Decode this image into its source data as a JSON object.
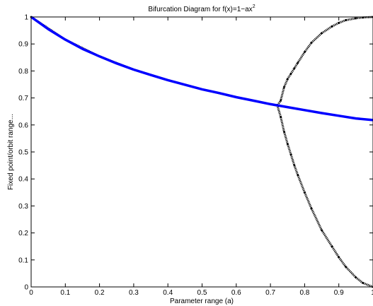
{
  "chart_data": {
    "type": "scatter",
    "title": "Bifurcation Diagram for f(x)=1−ax",
    "title_superscript": "2",
    "xlabel": "Parameter range (a)",
    "ylabel": "Fixed point/orbit range...",
    "xlim": [
      0,
      1
    ],
    "ylim": [
      0,
      1
    ],
    "x_ticks": [
      "0",
      "0.1",
      "0.2",
      "0.3",
      "0.4",
      "0.5",
      "0.6",
      "0.7",
      "0.8",
      "0.9",
      "1"
    ],
    "y_ticks": [
      "0",
      "0.1",
      "0.2",
      "0.3",
      "0.4",
      "0.5",
      "0.6",
      "0.7",
      "0.8",
      "0.9",
      "1"
    ],
    "grid": false,
    "series": [
      {
        "style": "line",
        "color": "#0000ff",
        "x": [
          0,
          0.05,
          0.1,
          0.15,
          0.2,
          0.25,
          0.3,
          0.35,
          0.4,
          0.45,
          0.5,
          0.55,
          0.6,
          0.65,
          0.7,
          0.75,
          0.8,
          0.85,
          0.9,
          0.95,
          1.0
        ],
        "y": [
          1.0,
          0.955,
          0.916,
          0.882,
          0.854,
          0.828,
          0.805,
          0.785,
          0.766,
          0.749,
          0.732,
          0.718,
          0.703,
          0.69,
          0.677,
          0.666,
          0.655,
          0.644,
          0.634,
          0.624,
          0.618
        ]
      },
      {
        "style": "dots",
        "color": "#000000",
        "x": [
          0,
          0.1,
          0.2,
          0.3,
          0.4,
          0.5,
          0.6,
          0.65,
          0.7,
          0.72,
          0.73,
          0.74,
          0.75,
          0.76,
          0.77,
          0.78,
          0.8,
          0.82,
          0.85,
          0.88,
          0.9,
          0.92,
          0.95,
          0.97,
          1.0
        ],
        "y": [
          1.0,
          0.916,
          0.854,
          0.805,
          0.766,
          0.732,
          0.703,
          0.69,
          0.677,
          0.672,
          0.69,
          0.74,
          0.77,
          0.79,
          0.81,
          0.83,
          0.87,
          0.905,
          0.94,
          0.965,
          0.978,
          0.988,
          0.995,
          0.998,
          1.0
        ]
      },
      {
        "style": "dots",
        "color": "#000000",
        "x": [
          0.72,
          0.73,
          0.74,
          0.75,
          0.76,
          0.77,
          0.78,
          0.8,
          0.82,
          0.85,
          0.88,
          0.9,
          0.92,
          0.95,
          0.97,
          1.0
        ],
        "y": [
          0.672,
          0.63,
          0.575,
          0.53,
          0.49,
          0.45,
          0.415,
          0.35,
          0.29,
          0.21,
          0.15,
          0.11,
          0.075,
          0.035,
          0.015,
          0.0
        ]
      }
    ]
  }
}
